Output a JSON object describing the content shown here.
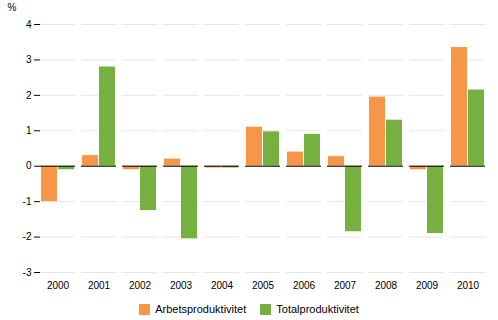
{
  "chart_data": {
    "type": "bar",
    "categories": [
      "2000",
      "2001",
      "2002",
      "2003",
      "2004",
      "2005",
      "2006",
      "2007",
      "2008",
      "2009",
      "2010"
    ],
    "series": [
      {
        "name": "Arbetsproduktivitet",
        "color": "#f79646",
        "values": [
          -1.0,
          0.3,
          -0.1,
          0.2,
          -0.05,
          1.1,
          0.4,
          0.27,
          1.95,
          -0.1,
          3.35
        ]
      },
      {
        "name": "Totalproduktivitet",
        "color": "#76b041",
        "values": [
          -0.1,
          2.8,
          -1.25,
          -2.05,
          -0.05,
          0.97,
          0.9,
          -1.85,
          1.3,
          -1.9,
          2.15
        ]
      }
    ],
    "ylabel": "%",
    "ylim": [
      -3,
      4
    ],
    "yticks": [
      -3,
      -2,
      -1,
      0,
      1,
      2,
      3,
      4
    ],
    "grid": true,
    "legend": "bottom"
  }
}
